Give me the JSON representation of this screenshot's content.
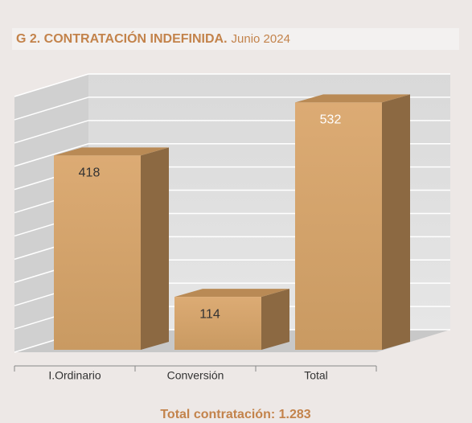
{
  "chart_data": {
    "type": "bar3d",
    "title": "G 2. CONTRATACIÓN INDEFINIDA.",
    "subtitle": "Junio 2024",
    "categories": [
      "I.Ordinario",
      "Conversión",
      "Total"
    ],
    "values": [
      418,
      114,
      532
    ],
    "color": "#d4a46d",
    "ylim": [
      0,
      550
    ],
    "yticks": [
      0,
      50,
      100,
      150,
      200,
      250,
      300,
      350,
      400,
      450,
      500,
      550
    ],
    "grid": true,
    "annotation": "Total contratación: 1.283"
  }
}
